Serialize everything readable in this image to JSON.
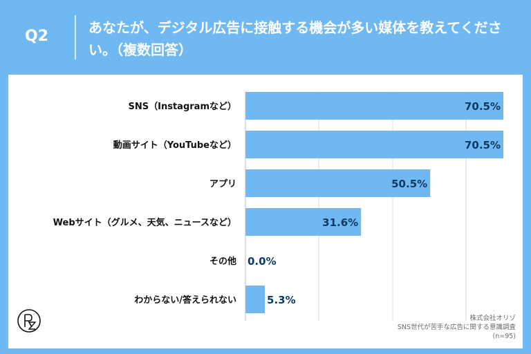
{
  "question": {
    "label": "Q2",
    "text": "あなたが、デジタル広告に接触する機会が多い媒体を教えてください。（複数回答）"
  },
  "chart_data": {
    "type": "bar",
    "orientation": "horizontal",
    "categories": [
      "SNS（Instagramなど）",
      "動画サイト（YouTubeなど）",
      "アプリ",
      "Webサイト（グルメ、天気、ニュースなど）",
      "その他",
      "わからない/答えられない"
    ],
    "values": [
      70.5,
      70.5,
      50.5,
      31.6,
      0.0,
      5.3
    ],
    "value_labels": [
      "70.5%",
      "70.5%",
      "50.5%",
      "31.6%",
      "0.0%",
      "5.3%"
    ],
    "unit": "%",
    "xlim": [
      0,
      70.5
    ],
    "grid": true,
    "bar_color": "#6fb8f2"
  },
  "footnote": {
    "line1": "株式会社オリゾ",
    "line2": "SNS世代が苦手な広告に関する意識調査",
    "line3": "(n=95)"
  },
  "colors": {
    "background": "#6fb8f2",
    "label_text": "#111111",
    "value_text": "#0d3a63",
    "grid": "#d9d9d9"
  },
  "logo": {
    "icon": "orizo-logo-icon"
  }
}
